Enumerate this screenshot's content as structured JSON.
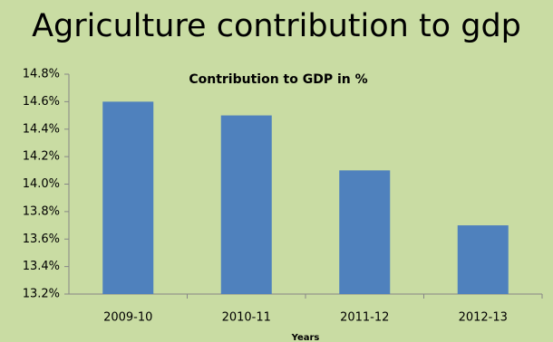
{
  "chart_data": {
    "type": "bar",
    "title": "Agriculture contribution to gdp",
    "subtitle": "Contribution to GDP in %",
    "x_label": "Years",
    "categories": [
      "2009-10",
      "2010-11",
      "2011-12",
      "2012-13"
    ],
    "values": [
      14.6,
      14.5,
      14.1,
      13.7
    ],
    "color": "#4f81bd",
    "ylim": [
      13.2,
      14.8
    ],
    "yticks": [
      {
        "value": 13.2,
        "label": "13.2%"
      },
      {
        "value": 13.4,
        "label": "13.4%"
      },
      {
        "value": 13.6,
        "label": "13.6%"
      },
      {
        "value": 13.8,
        "label": "13.8%"
      },
      {
        "value": 14.0,
        "label": "14.0%"
      },
      {
        "value": 14.2,
        "label": "14.2%"
      },
      {
        "value": 14.4,
        "label": "14.4%"
      },
      {
        "value": 14.6,
        "label": "14.6%"
      },
      {
        "value": 14.8,
        "label": "14.8%"
      }
    ],
    "grid": false
  }
}
